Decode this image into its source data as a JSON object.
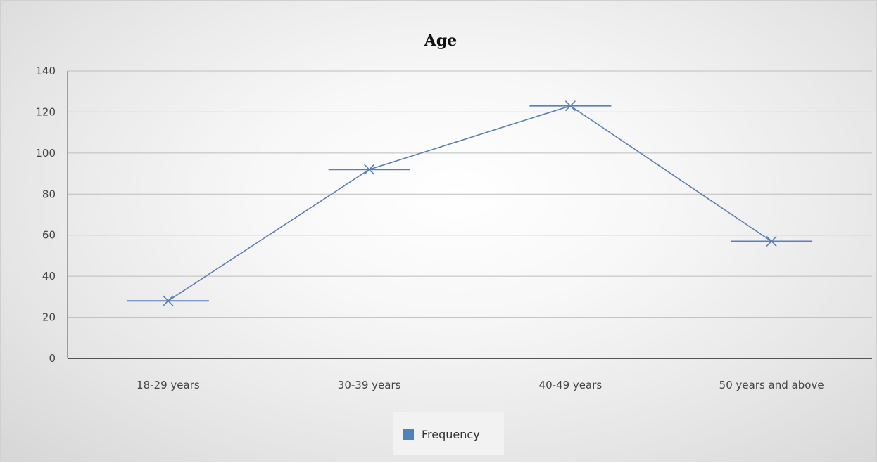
{
  "chart_data": {
    "type": "line",
    "title": "Age",
    "xlabel": "",
    "ylabel": "",
    "categories": [
      "18-29 years",
      "30-39 years",
      "40-49 years",
      "50 years and above"
    ],
    "series": [
      {
        "name": "Frequency",
        "values": [
          28,
          92,
          123,
          57
        ]
      }
    ],
    "ylim": [
      0,
      140
    ],
    "yticks": [
      0,
      20,
      40,
      60,
      80,
      100,
      120,
      140
    ],
    "grid": true,
    "legend": "bottom",
    "marker": "x-with-dash",
    "colors": {
      "series": "#5b7fb5",
      "legend_swatch": "#4f81bd",
      "grid": "#bdbdbd",
      "axis": "#555555"
    }
  }
}
